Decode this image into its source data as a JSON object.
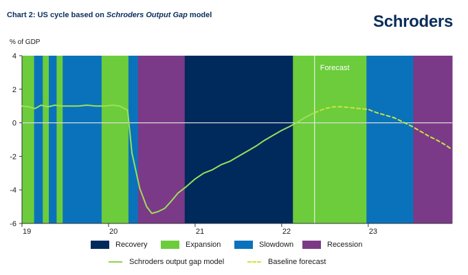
{
  "header": {
    "title_prefix": "Chart 2: US cycle based on ",
    "title_italic": "Schroders Output Gap",
    "title_suffix": " model",
    "logo": "Schroders"
  },
  "chart_data": {
    "type": "line",
    "ylabel": "% of GDP",
    "ylim": [
      -6,
      4
    ],
    "y_ticks": [
      "4",
      "2",
      "0",
      "-2",
      "-4",
      "-6"
    ],
    "x_ticks": [
      "19",
      "20",
      "21",
      "22",
      "23"
    ],
    "x_tick_positions": [
      2019.0,
      2020.0,
      2021.0,
      2022.0,
      2023.0
    ],
    "xlim": [
      2019.0,
      2023.97
    ],
    "forecast_label": "Forecast",
    "forecast_start": 2022.38,
    "phase_colors": {
      "Recovery": "#00295c",
      "Expansion": "#6ccc3c",
      "Slowdown": "#0a72bb",
      "Recession": "#7b3a87"
    },
    "phases": [
      {
        "phase": "Expansion",
        "start": 2019.0,
        "end": 2019.14
      },
      {
        "phase": "Slowdown",
        "start": 2019.14,
        "end": 2019.24
      },
      {
        "phase": "Expansion",
        "start": 2019.24,
        "end": 2019.31
      },
      {
        "phase": "Slowdown",
        "start": 2019.31,
        "end": 2019.4
      },
      {
        "phase": "Expansion",
        "start": 2019.4,
        "end": 2019.47
      },
      {
        "phase": "Slowdown",
        "start": 2019.47,
        "end": 2019.92
      },
      {
        "phase": "Expansion",
        "start": 2019.92,
        "end": 2020.23
      },
      {
        "phase": "Slowdown",
        "start": 2020.23,
        "end": 2020.34
      },
      {
        "phase": "Recession",
        "start": 2020.34,
        "end": 2020.88
      },
      {
        "phase": "Recovery",
        "start": 2020.88,
        "end": 2022.13
      },
      {
        "phase": "Expansion",
        "start": 2022.13,
        "end": 2022.98
      },
      {
        "phase": "Slowdown",
        "start": 2022.98,
        "end": 2023.52
      },
      {
        "phase": "Recession",
        "start": 2023.52,
        "end": 2023.97
      }
    ],
    "series": [
      {
        "name": "Schroders output gap model",
        "color": "#9be05a",
        "style": "solid",
        "x": [
          2019.0,
          2019.08,
          2019.15,
          2019.22,
          2019.3,
          2019.38,
          2019.46,
          2019.55,
          2019.65,
          2019.75,
          2019.85,
          2019.95,
          2020.05,
          2020.13,
          2020.22,
          2020.27,
          2020.36,
          2020.44,
          2020.5,
          2020.57,
          2020.65,
          2020.72,
          2020.8,
          2020.9,
          2021.0,
          2021.1,
          2021.2,
          2021.3,
          2021.4,
          2021.5,
          2021.6,
          2021.7,
          2021.8,
          2021.9,
          2022.0,
          2022.1,
          2022.2,
          2022.3,
          2022.38
        ],
        "y": [
          1.0,
          0.95,
          0.85,
          1.05,
          0.95,
          1.05,
          1.0,
          1.0,
          1.0,
          1.05,
          1.0,
          1.0,
          1.05,
          1.0,
          0.75,
          -1.8,
          -3.9,
          -5.0,
          -5.4,
          -5.3,
          -5.1,
          -4.7,
          -4.2,
          -3.8,
          -3.35,
          -3.0,
          -2.8,
          -2.5,
          -2.3,
          -2.0,
          -1.7,
          -1.4,
          -1.05,
          -0.75,
          -0.45,
          -0.2,
          0.1,
          0.4,
          0.6
        ]
      },
      {
        "name": "Baseline forecast",
        "color": "#c8e63c",
        "style": "dashed",
        "x": [
          2022.38,
          2022.5,
          2022.6,
          2022.7,
          2022.8,
          2022.9,
          2023.0,
          2023.1,
          2023.2,
          2023.3,
          2023.4,
          2023.5,
          2023.6,
          2023.7,
          2023.8,
          2023.9,
          2023.97
        ],
        "y": [
          0.6,
          0.85,
          0.95,
          0.95,
          0.9,
          0.85,
          0.8,
          0.6,
          0.45,
          0.3,
          0.05,
          -0.2,
          -0.5,
          -0.8,
          -1.05,
          -1.35,
          -1.6
        ]
      }
    ],
    "legend": {
      "phases": [
        "Recovery",
        "Expansion",
        "Slowdown",
        "Recession"
      ],
      "lines": [
        "Schroders output gap model",
        "Baseline forecast"
      ]
    },
    "grid": false,
    "zero_line": true,
    "legend_position": "bottom"
  }
}
